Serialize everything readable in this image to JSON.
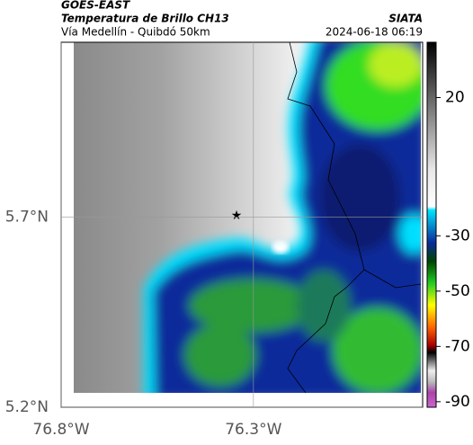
{
  "header": {
    "satellite": "GOES-EAST",
    "title": "Temperatura de Brillo CH13",
    "subtitle": "Vía Medellín - Quibdó 50km",
    "source": "SIATA",
    "timestamp": "2024-06-18 06:19"
  },
  "map": {
    "xlim": [
      -76.8,
      -75.86
    ],
    "ylim": [
      5.2,
      6.16
    ],
    "xticks": [
      {
        "value": -76.8,
        "label": "76.8°W"
      },
      {
        "value": -76.3,
        "label": "76.3°W"
      }
    ],
    "yticks": [
      {
        "value": 5.2,
        "label": "5.2°N"
      },
      {
        "value": 5.7,
        "label": "5.7°N"
      }
    ],
    "grid": true
  },
  "colorbar": {
    "lim": [
      -92,
      40
    ],
    "ticks": [
      20,
      -30,
      -50,
      -70,
      -90
    ]
  }
}
